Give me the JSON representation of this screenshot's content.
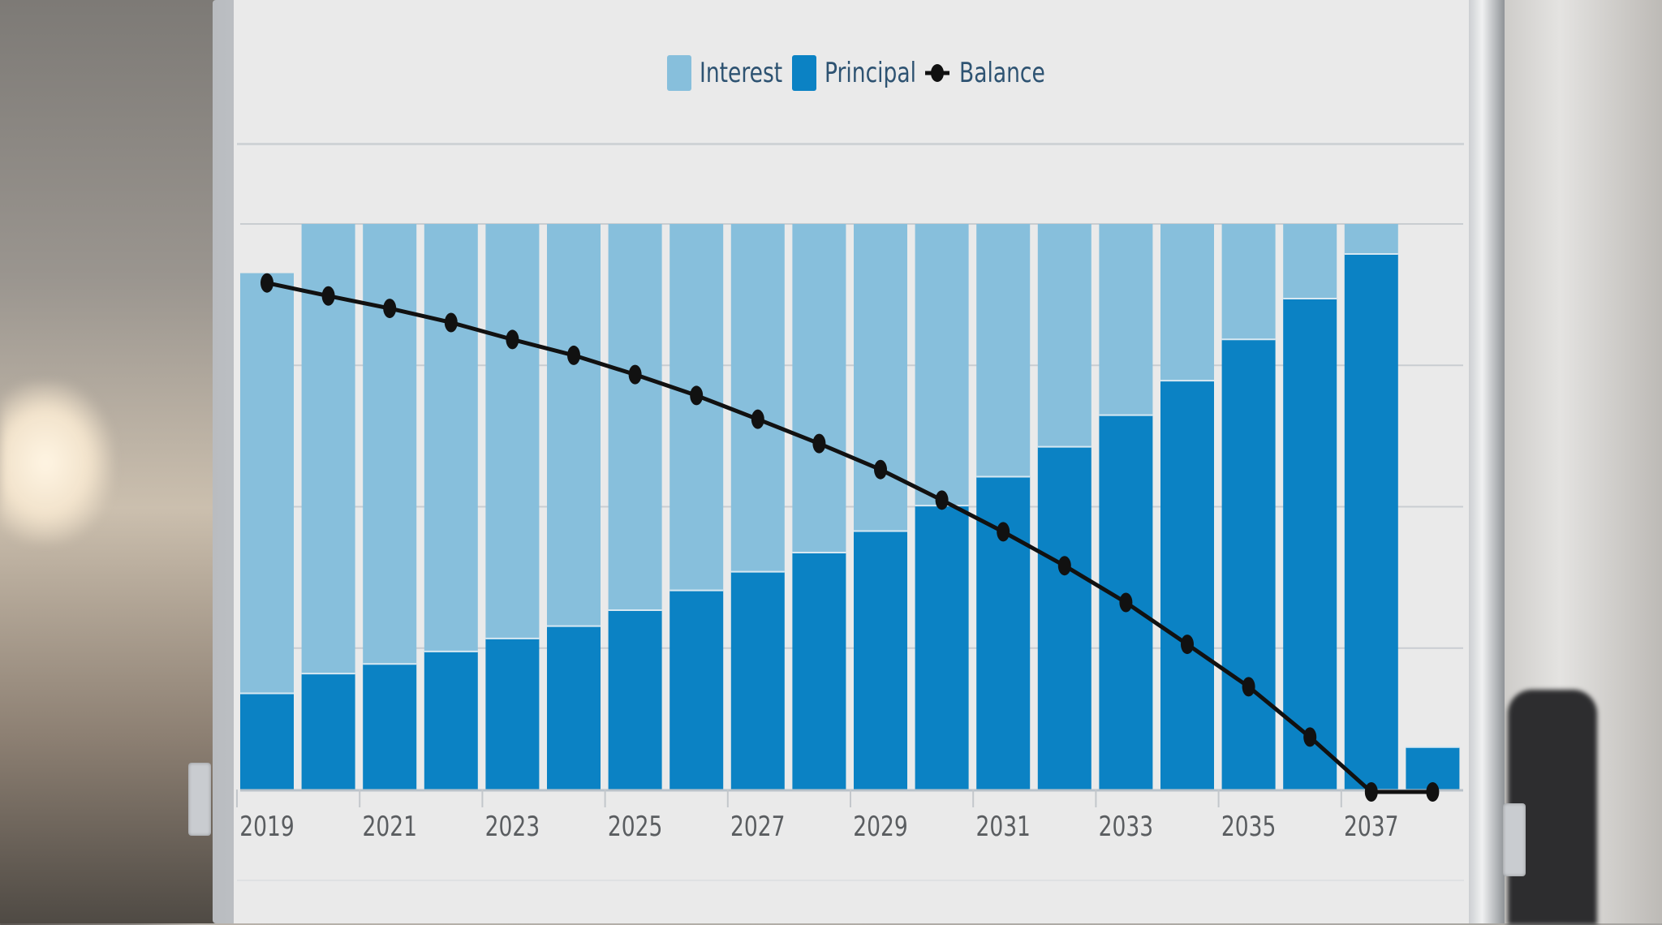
{
  "legend": {
    "items": [
      {
        "label": "Interest",
        "color": "#87bfdc"
      },
      {
        "label": "Principal",
        "color": "#0b82c4"
      },
      {
        "label": "Balance",
        "color": "#111111"
      }
    ]
  },
  "chart_data": {
    "type": "bar",
    "stacked": true,
    "title": "",
    "xlabel": "",
    "ylabel": "",
    "x_tick_labels": [
      "2019",
      "2021",
      "2023",
      "2025",
      "2027",
      "2029",
      "2031",
      "2033",
      "2035",
      "2037"
    ],
    "categories": [
      "2019",
      "2020",
      "2021",
      "2022",
      "2023",
      "2024",
      "2025",
      "2026",
      "2027",
      "2028",
      "2029",
      "2030",
      "2031",
      "2032",
      "2033",
      "2034",
      "2035",
      "2036",
      "2037",
      "2038"
    ],
    "series": [
      {
        "name": "Principal",
        "type": "bar",
        "color": "#0b82c4",
        "values": [
          0.17,
          0.205,
          0.222,
          0.244,
          0.267,
          0.289,
          0.317,
          0.352,
          0.385,
          0.419,
          0.457,
          0.502,
          0.553,
          0.606,
          0.662,
          0.723,
          0.796,
          0.868,
          0.947,
          0.075
        ]
      },
      {
        "name": "Interest",
        "type": "bar",
        "color": "#87bfdc",
        "values": [
          0.743,
          0.795,
          0.778,
          0.756,
          0.733,
          0.711,
          0.683,
          0.648,
          0.615,
          0.581,
          0.543,
          0.498,
          0.447,
          0.394,
          0.338,
          0.277,
          0.204,
          0.132,
          0.053,
          0.0
        ]
      },
      {
        "name": "Balance",
        "type": "line",
        "color": "#111111",
        "values": [
          0.9,
          0.877,
          0.855,
          0.83,
          0.8,
          0.772,
          0.738,
          0.701,
          0.659,
          0.616,
          0.57,
          0.516,
          0.46,
          0.4,
          0.335,
          0.261,
          0.186,
          0.097,
          0.0,
          0.0
        ]
      }
    ],
    "ylim": [
      0,
      1
    ],
    "grid": true,
    "legend_position": "top-center"
  }
}
